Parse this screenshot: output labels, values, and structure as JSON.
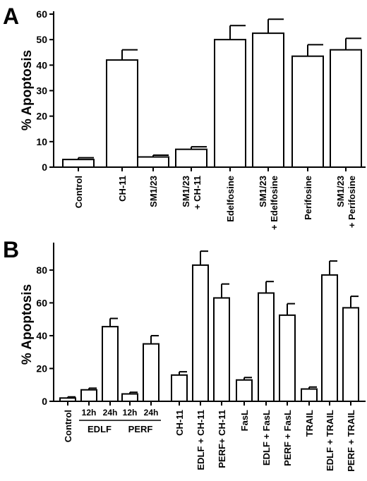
{
  "chart_data": [
    {
      "type": "bar",
      "panel_label": "A",
      "ylabel": "% Apoptosis",
      "ylim": [
        0,
        60
      ],
      "yticks": [
        "0",
        "10",
        "20",
        "30",
        "40",
        "50",
        "60"
      ],
      "categories": [
        [
          "Control"
        ],
        [
          "CH-11"
        ],
        [
          "SM1/23"
        ],
        [
          "SM1/23",
          "+ CH-11"
        ],
        [
          "Edelfosine"
        ],
        [
          "SM1/23",
          "+ Edelfosine"
        ],
        [
          "Perifosine"
        ],
        [
          "SM1/23",
          "+ Perifosine"
        ]
      ],
      "values": [
        3,
        42,
        4,
        7,
        50,
        52.5,
        43.5,
        46
      ],
      "errors": [
        0.7,
        4,
        0.7,
        1,
        5.5,
        5.5,
        4.5,
        4.5
      ],
      "bar_fill": "#ffffff",
      "bar_stroke": "#000000"
    },
    {
      "type": "bar",
      "panel_label": "B",
      "ylabel": "% Apoptosis",
      "ylim": [
        0,
        95
      ],
      "yticks": [
        "0",
        "20",
        "40",
        "60",
        "80"
      ],
      "categories": [
        [
          "Control"
        ],
        [
          "12h"
        ],
        [
          "24h"
        ],
        [
          "12h"
        ],
        [
          "24h"
        ],
        [
          "CH-11"
        ],
        [
          "EDLF + CH-11"
        ],
        [
          "PERF+ CH-11"
        ],
        [
          "FasL"
        ],
        [
          "EDLF + FasL"
        ],
        [
          "PERF + FasL"
        ],
        [
          "TRAIL"
        ],
        [
          "EDLF + TRAIL"
        ],
        [
          "PERF + TRAIL"
        ]
      ],
      "category_groups": [
        {
          "label": "EDLF",
          "members": [
            1,
            2
          ]
        },
        {
          "label": "PERF",
          "members": [
            3,
            4
          ]
        }
      ],
      "values": [
        2,
        7,
        45.5,
        4.5,
        35,
        16,
        83,
        63,
        13,
        66,
        52.5,
        7.5,
        77,
        57
      ],
      "errors": [
        0.7,
        1,
        5,
        1,
        5,
        2,
        8.5,
        8.5,
        1.5,
        7,
        7,
        1.2,
        8.5,
        7
      ],
      "bar_fill": "#ffffff",
      "bar_stroke": "#000000"
    }
  ]
}
